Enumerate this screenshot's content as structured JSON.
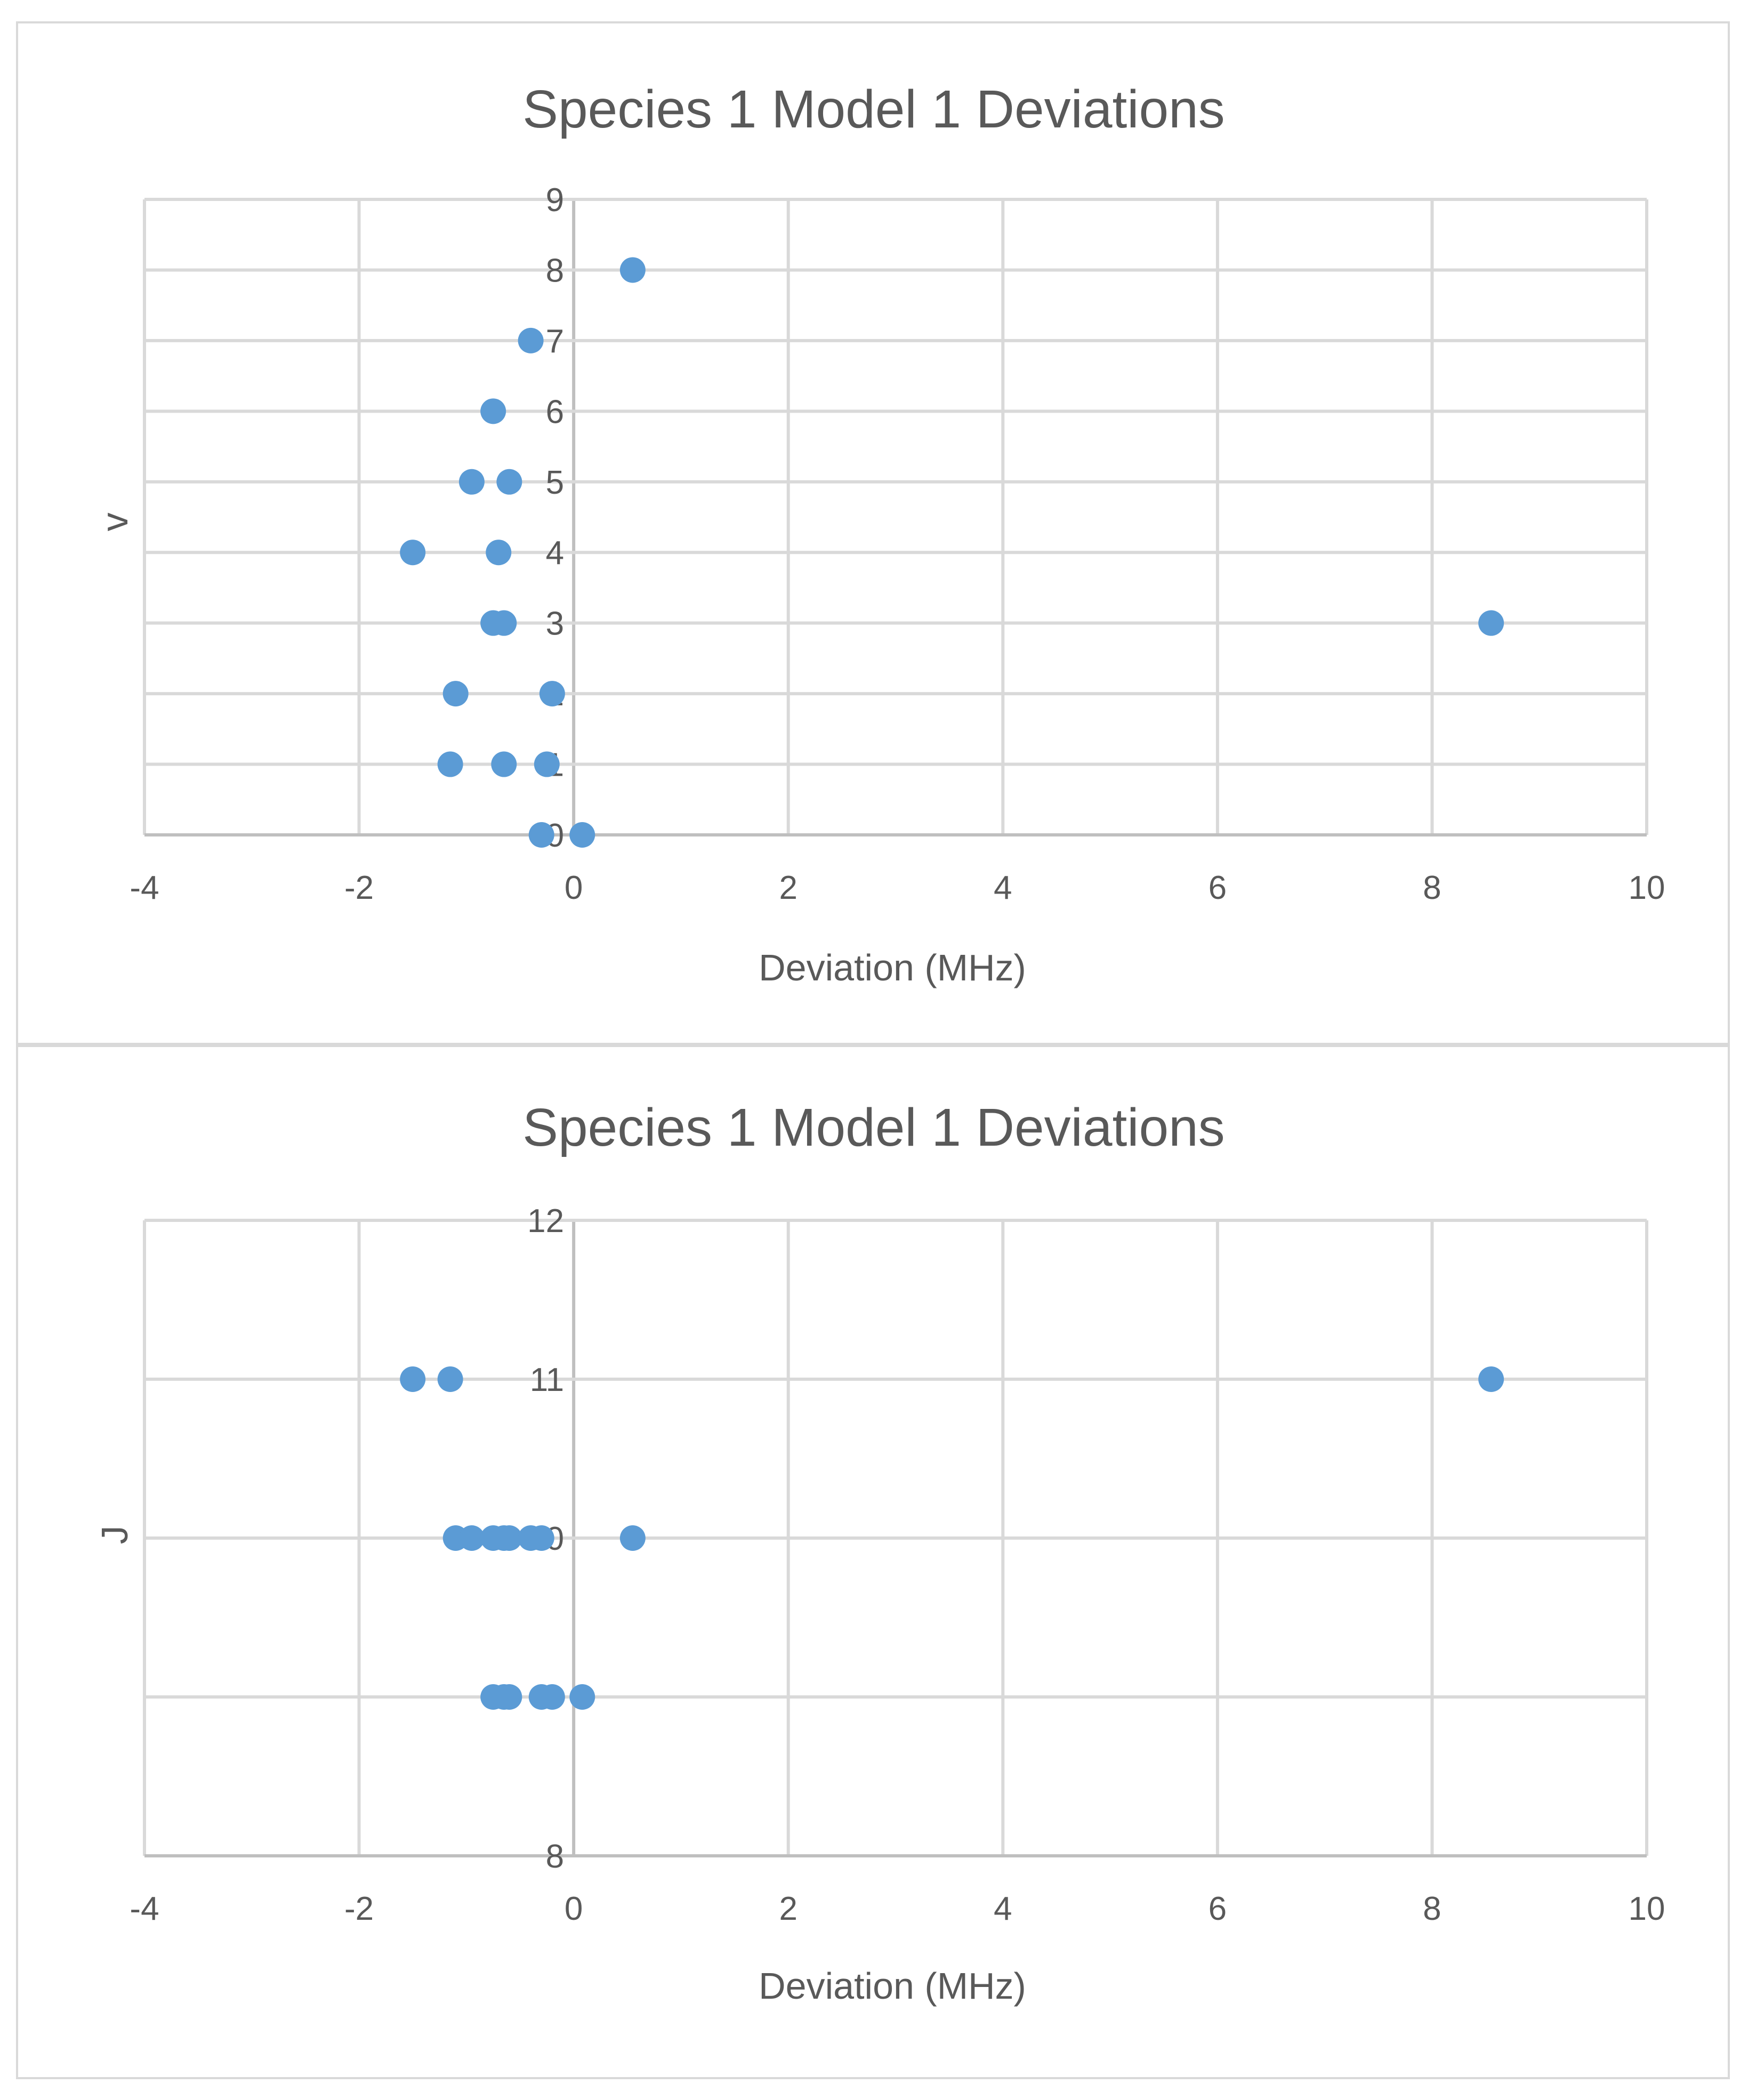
{
  "chart_data": [
    {
      "type": "scatter",
      "title": "Species 1 Model 1 Deviations",
      "xlabel": "Deviation (MHz)",
      "ylabel": "v",
      "xlim": [
        -4,
        10
      ],
      "ylim": [
        0,
        9
      ],
      "xticks": [
        "-4",
        "-2",
        "0",
        "2",
        "4",
        "6",
        "8",
        "10"
      ],
      "yticks": [
        "0",
        "1",
        "2",
        "3",
        "4",
        "5",
        "6",
        "7",
        "8",
        "9"
      ],
      "grid": true,
      "color": "#5b9bd5",
      "points": [
        {
          "x": 0.55,
          "y": 8
        },
        {
          "x": -0.4,
          "y": 7
        },
        {
          "x": -0.75,
          "y": 6
        },
        {
          "x": -0.95,
          "y": 5
        },
        {
          "x": -0.6,
          "y": 5
        },
        {
          "x": -1.5,
          "y": 4
        },
        {
          "x": -0.7,
          "y": 4
        },
        {
          "x": -0.75,
          "y": 3
        },
        {
          "x": -0.65,
          "y": 3
        },
        {
          "x": 8.55,
          "y": 3
        },
        {
          "x": -1.1,
          "y": 2
        },
        {
          "x": -0.2,
          "y": 2
        },
        {
          "x": -1.15,
          "y": 1
        },
        {
          "x": -0.65,
          "y": 1
        },
        {
          "x": -0.25,
          "y": 1
        },
        {
          "x": -0.3,
          "y": 0
        },
        {
          "x": 0.08,
          "y": 0
        }
      ]
    },
    {
      "type": "scatter",
      "title": "Species 1 Model 1 Deviations",
      "xlabel": "Deviation (MHz)",
      "ylabel": "J",
      "xlim": [
        -4,
        10
      ],
      "ylim": [
        8,
        12
      ],
      "xticks": [
        "-4",
        "-2",
        "0",
        "2",
        "4",
        "6",
        "8",
        "10"
      ],
      "yticks": [
        "8",
        "9",
        "10",
        "11",
        "12"
      ],
      "grid": true,
      "color": "#5b9bd5",
      "points": [
        {
          "x": -1.5,
          "y": 11
        },
        {
          "x": -1.15,
          "y": 11
        },
        {
          "x": 8.55,
          "y": 11
        },
        {
          "x": -1.1,
          "y": 10
        },
        {
          "x": -0.95,
          "y": 10
        },
        {
          "x": -0.75,
          "y": 10
        },
        {
          "x": -0.65,
          "y": 10
        },
        {
          "x": -0.6,
          "y": 10
        },
        {
          "x": -0.4,
          "y": 10
        },
        {
          "x": -0.3,
          "y": 10
        },
        {
          "x": 0.55,
          "y": 10
        },
        {
          "x": -0.75,
          "y": 9
        },
        {
          "x": -0.65,
          "y": 9
        },
        {
          "x": -0.6,
          "y": 9
        },
        {
          "x": -0.3,
          "y": 9
        },
        {
          "x": -0.2,
          "y": 9
        },
        {
          "x": 0.08,
          "y": 9
        }
      ]
    }
  ]
}
